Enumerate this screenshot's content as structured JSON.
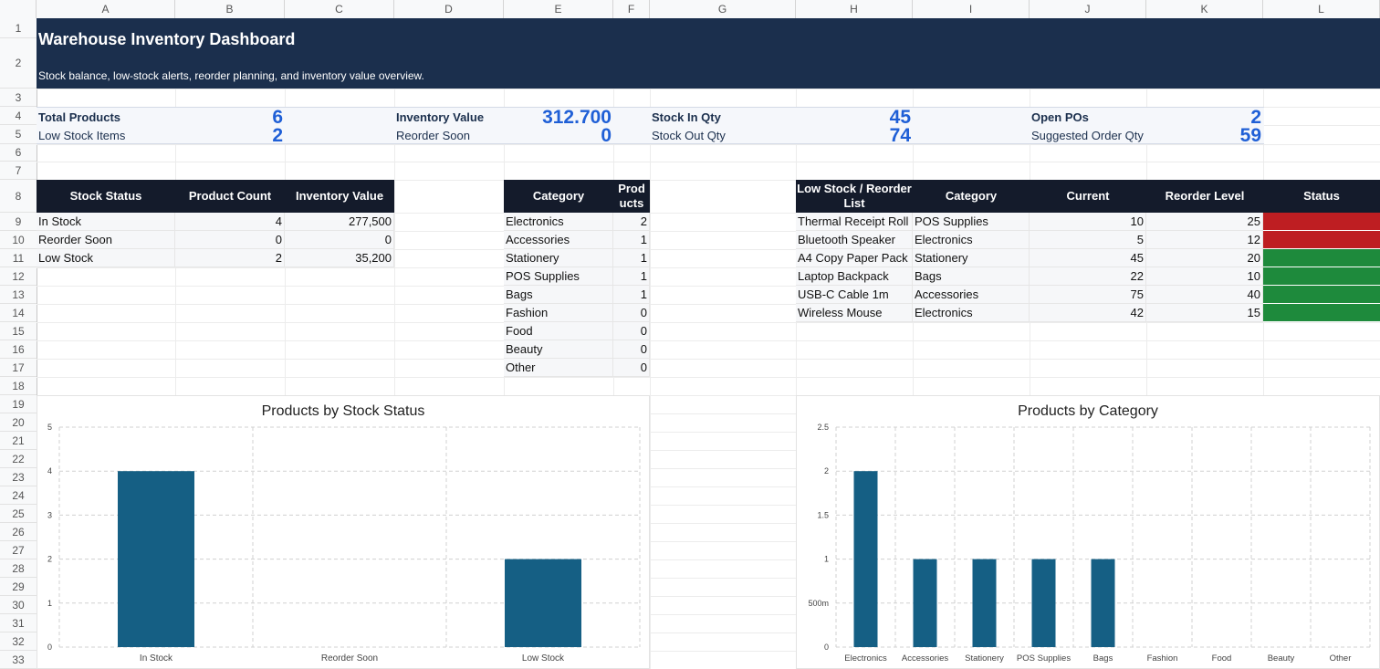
{
  "columns": [
    "A",
    "B",
    "C",
    "D",
    "E",
    "F",
    "G",
    "H",
    "I",
    "J",
    "K",
    "L"
  ],
  "rows": [
    "1",
    "2",
    "3",
    "4",
    "5",
    "6",
    "7",
    "8",
    "9",
    "10",
    "11",
    "12",
    "13",
    "14",
    "15",
    "16",
    "17",
    "18",
    "19",
    "20",
    "21",
    "22",
    "23",
    "24",
    "25",
    "26",
    "27",
    "28",
    "29",
    "30",
    "31",
    "32",
    "33"
  ],
  "title": "Warehouse Inventory Dashboard",
  "subtitle": "Stock balance, low-stock alerts, reorder planning, and inventory value overview.",
  "kpis": {
    "total_products": {
      "label": "Total Products",
      "value": "6"
    },
    "low_stock_items": {
      "label": "Low Stock Items",
      "value": "2"
    },
    "inventory_value": {
      "label": "Inventory Value",
      "value": "312.700"
    },
    "reorder_soon": {
      "label": "Reorder Soon",
      "value": "0"
    },
    "stock_in_qty": {
      "label": "Stock In Qty",
      "value": "45"
    },
    "stock_out_qty": {
      "label": "Stock Out Qty",
      "value": "74"
    },
    "open_pos": {
      "label": "Open POs",
      "value": "2"
    },
    "suggested_order_qty": {
      "label": "Suggested Order Qty",
      "value": "59"
    }
  },
  "status_table": {
    "headers": [
      "Stock Status",
      "Product Count",
      "Inventory Value"
    ],
    "rows": [
      [
        "In Stock",
        "4",
        "277,500"
      ],
      [
        "Reorder Soon",
        "0",
        "0"
      ],
      [
        "Low Stock",
        "2",
        "35,200"
      ]
    ]
  },
  "category_table": {
    "headers": [
      "Category",
      "Prod\nucts"
    ],
    "rows": [
      [
        "Electronics",
        "2"
      ],
      [
        "Accessories",
        "1"
      ],
      [
        "Stationery",
        "1"
      ],
      [
        "POS Supplies",
        "1"
      ],
      [
        "Bags",
        "1"
      ],
      [
        "Fashion",
        "0"
      ],
      [
        "Food",
        "0"
      ],
      [
        "Beauty",
        "0"
      ],
      [
        "Other",
        "0"
      ]
    ]
  },
  "reorder_table": {
    "headers": [
      "Low Stock / Reorder List",
      "Category",
      "Current",
      "Reorder Level",
      "Status"
    ],
    "rows": [
      {
        "item": "Thermal Receipt Roll",
        "category": "POS Supplies",
        "current": "10",
        "reorder": "25",
        "status_color": "#be1e22"
      },
      {
        "item": "Bluetooth Speaker",
        "category": "Electronics",
        "current": "5",
        "reorder": "12",
        "status_color": "#be1e22"
      },
      {
        "item": "A4 Copy Paper Pack",
        "category": "Stationery",
        "current": "45",
        "reorder": "20",
        "status_color": "#1e8a3c"
      },
      {
        "item": "Laptop Backpack",
        "category": "Bags",
        "current": "22",
        "reorder": "10",
        "status_color": "#1e8a3c"
      },
      {
        "item": "USB-C Cable 1m",
        "category": "Accessories",
        "current": "75",
        "reorder": "40",
        "status_color": "#1e8a3c"
      },
      {
        "item": "Wireless Mouse",
        "category": "Electronics",
        "current": "42",
        "reorder": "15",
        "status_color": "#1e8a3c"
      }
    ]
  },
  "colors": {
    "banner": "#1b2f4d",
    "kpi_value": "#1f5fd6",
    "table_header": "#141b2b",
    "bar": "#155f84",
    "alert_red": "#be1e22",
    "ok_green": "#1e8a3c"
  },
  "chart_data": [
    {
      "type": "bar",
      "title": "Products by Stock Status",
      "categories": [
        "In Stock",
        "Reorder Soon",
        "Low Stock"
      ],
      "values": [
        4,
        0,
        2
      ],
      "ylim": [
        0,
        5
      ],
      "yticks": [
        "0",
        "1",
        "2",
        "3",
        "4",
        "5"
      ],
      "grid": true
    },
    {
      "type": "bar",
      "title": "Products by Category",
      "categories": [
        "Electronics",
        "Accessories",
        "Stationery",
        "POS Supplies",
        "Bags",
        "Fashion",
        "Food",
        "Beauty",
        "Other"
      ],
      "values": [
        2,
        1,
        1,
        1,
        1,
        0,
        0,
        0,
        0
      ],
      "ylim": [
        0,
        2.5
      ],
      "yticks": [
        "0",
        "500m",
        "1",
        "1.5",
        "2",
        "2.5"
      ],
      "grid": true
    }
  ]
}
